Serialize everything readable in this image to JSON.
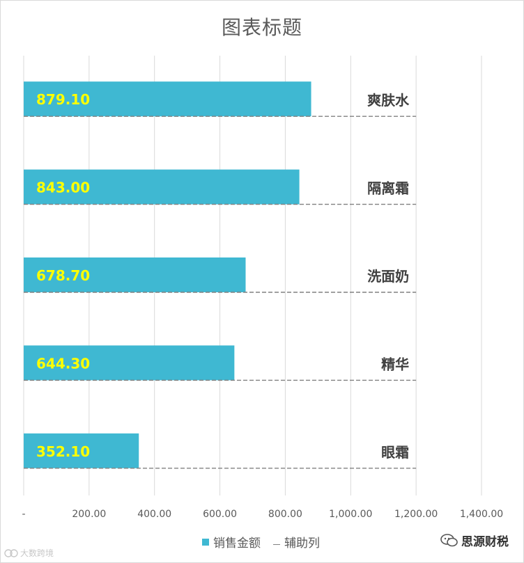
{
  "chart_data": {
    "type": "bar",
    "title": "图表标题",
    "categories": [
      "爽肤水",
      "隔离霜",
      "洗面奶",
      "精华",
      "眼霜"
    ],
    "series": [
      {
        "name": "销售金额",
        "values": [
          879.1,
          843.0,
          678.7,
          644.3,
          352.1
        ],
        "color": "#3FB8D2"
      },
      {
        "name": "辅助列",
        "values": [
          1200,
          1200,
          1200,
          1200,
          1200
        ],
        "color": "#808080"
      }
    ],
    "value_labels": [
      "879.10",
      "843.00",
      "678.70",
      "644.30",
      "352.10"
    ],
    "x_tick_labels": [
      "-",
      "200.00",
      "400.00",
      "600.00",
      "800.00",
      "1,000.00",
      "1,200.00",
      "1,400.00"
    ],
    "x_ticks": [
      0,
      200,
      400,
      600,
      800,
      1000,
      1200,
      1400
    ],
    "xlim": [
      0,
      1400
    ],
    "grid": "vertical",
    "legend_position": "bottom",
    "data_label_color": "#FFFF00",
    "gridline_color": "#d9d9d9"
  },
  "watermark": {
    "right_text": "思源财税",
    "left_text": "大数跨境"
  }
}
